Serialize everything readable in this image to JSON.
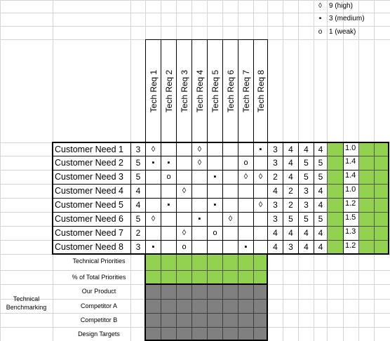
{
  "requirements": [
    "Tech Req 1",
    "Tech Req 2",
    "Tech Req 3",
    "Tech Req 4",
    "Tech Req 5",
    "Tech Req 6",
    "Tech Req 7",
    "Tech Req 8"
  ],
  "needs": [
    {
      "label": "Customer Need 1",
      "importance": "3",
      "relations": [
        "◊",
        "",
        "",
        "◊",
        "",
        "",
        "",
        "▪"
      ],
      "ratings": [
        "3",
        "4",
        "4",
        "4"
      ],
      "weight": "1.0"
    },
    {
      "label": "Customer Need 2",
      "importance": "5",
      "relations": [
        "▪",
        "▪",
        "",
        "◊",
        "",
        "",
        "o",
        ""
      ],
      "ratings": [
        "3",
        "4",
        "5",
        "5"
      ],
      "weight": "1.4"
    },
    {
      "label": "Customer Need 3",
      "importance": "5",
      "relations": [
        "",
        "o",
        "",
        "",
        "▪",
        "",
        "◊",
        "◊"
      ],
      "ratings": [
        "2",
        "4",
        "5",
        "5"
      ],
      "weight": "1.4"
    },
    {
      "label": "Customer Need 4",
      "importance": "4",
      "relations": [
        "",
        "",
        "◊",
        "",
        "",
        "",
        "",
        ""
      ],
      "ratings": [
        "4",
        "2",
        "3",
        "4"
      ],
      "weight": "1.0"
    },
    {
      "label": "Customer Need 5",
      "importance": "4",
      "relations": [
        "",
        "▪",
        "",
        "",
        "▪",
        "",
        "",
        "◊"
      ],
      "ratings": [
        "3",
        "2",
        "3",
        "4"
      ],
      "weight": "1.2"
    },
    {
      "label": "Customer Need 6",
      "importance": "5",
      "relations": [
        "◊",
        "",
        "",
        "▪",
        "",
        "◊",
        "",
        ""
      ],
      "ratings": [
        "3",
        "5",
        "5",
        "5"
      ],
      "weight": "1.5"
    },
    {
      "label": "Customer Need 7",
      "importance": "2",
      "relations": [
        "",
        "",
        "◊",
        "",
        "o",
        "",
        "",
        ""
      ],
      "ratings": [
        "4",
        "4",
        "4",
        "4"
      ],
      "weight": "1.3"
    },
    {
      "label": "Customer Need 8",
      "importance": "3",
      "relations": [
        "▪",
        "",
        "o",
        "",
        "",
        "",
        "▪",
        ""
      ],
      "ratings": [
        "4",
        "3",
        "4",
        "4"
      ],
      "weight": "1.2"
    }
  ],
  "bottom_labels": {
    "technical_priorities": "Technical Priorities",
    "pct_total": "% of Total Priorities",
    "benchmarking": "Technical Benchmarking",
    "our_product": "Our Product",
    "competitor_a": "Competitor A",
    "competitor_b": "Competitor B",
    "design_targets": "Design Targets"
  },
  "legend": [
    {
      "symbol": "◊",
      "text": "9 (high)"
    },
    {
      "symbol": "▪",
      "text": "3 (medium)"
    },
    {
      "symbol": "o",
      "text": "1 (weak)"
    }
  ],
  "colors": {
    "priority_fill": "#92d050",
    "benchmark_fill": "#808080",
    "gridline": "#d4d4d4"
  }
}
